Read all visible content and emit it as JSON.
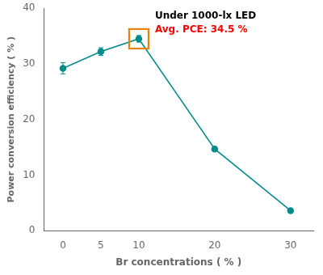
{
  "chart_data": {
    "type": "line",
    "x": [
      0,
      5,
      10,
      20,
      30
    ],
    "values": [
      29.2,
      32.2,
      34.5,
      14.7,
      3.6
    ],
    "yerr": [
      1.0,
      0.7,
      0.6,
      0.4,
      0.0
    ],
    "color": "#008B8B",
    "marker": "circle",
    "line_style": "solid",
    "xlabel": "Br concentrations ( % )",
    "ylabel": "Power conversion efficiency ( % )",
    "xlim": [
      -2.5,
      33
    ],
    "ylim": [
      0,
      40
    ],
    "xticks": [
      0,
      5,
      10,
      20,
      30
    ],
    "yticks": [
      0,
      10,
      20,
      30,
      40
    ],
    "grid": false,
    "annotations": [
      {
        "text": "Under 1000-lx LED",
        "color": "#000000"
      },
      {
        "text": "Avg. PCE: 34.5 %",
        "color": "red"
      }
    ]
  }
}
